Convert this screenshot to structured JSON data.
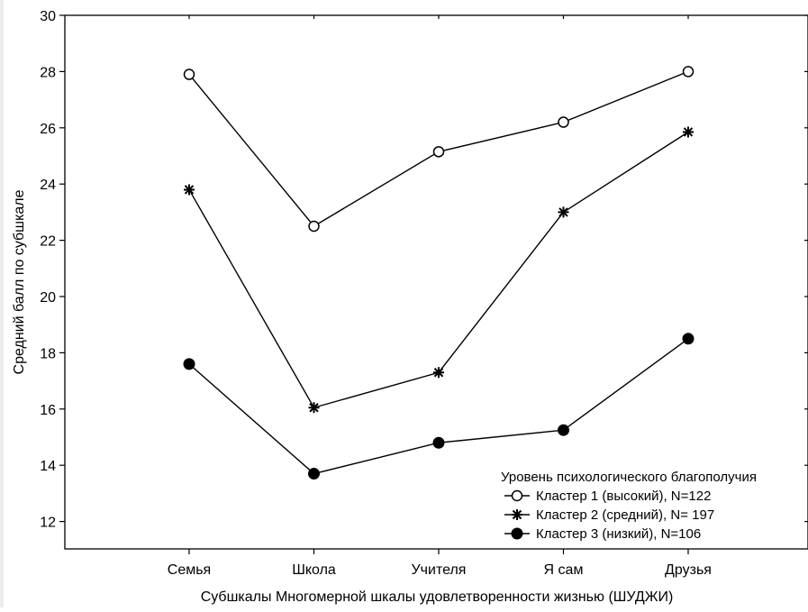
{
  "chart_data": {
    "type": "line",
    "xlabel": "Субшкалы Многомерной шкалы удовлетворенности жизнью (ШУДЖИ)",
    "ylabel": "Средний балл по субшкале",
    "ylim": [
      11,
      30
    ],
    "yticks": [
      12,
      14,
      16,
      18,
      20,
      22,
      24,
      26,
      28,
      30
    ],
    "categories": [
      "Семья",
      "Школа",
      "Учителя",
      "Я сам",
      "Друзья"
    ],
    "grid": false,
    "legend": {
      "title": "Уровень психологического благополучия",
      "placement": "bottom-right"
    },
    "series": [
      {
        "name": "Кластер 1 (высокий), N=122",
        "marker": "open-circle",
        "values": [
          27.9,
          22.5,
          25.15,
          26.2,
          28.0
        ]
      },
      {
        "name": "Кластер 2 (средний), N= 197",
        "marker": "asterisk",
        "values": [
          23.8,
          16.05,
          17.3,
          23.0,
          25.85
        ]
      },
      {
        "name": "Кластер 3 (низкий), N=106",
        "marker": "filled-circle",
        "values": [
          17.6,
          13.7,
          14.8,
          15.25,
          18.5
        ]
      }
    ],
    "colors": {
      "line": "#000000",
      "background": "#ffffff",
      "open_marker_fill": "#ffffff"
    }
  }
}
